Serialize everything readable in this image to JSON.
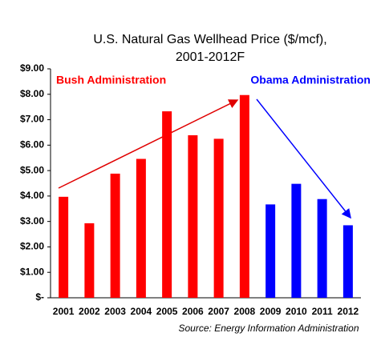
{
  "chart_data": {
    "type": "bar",
    "title": [
      "U.S. Natural Gas Wellhead Price ($/mcf),",
      "2001-2012F"
    ],
    "categories": [
      "2001",
      "2002",
      "2003",
      "2004",
      "2005",
      "2006",
      "2007",
      "2008",
      "2009",
      "2010",
      "2011",
      "2012"
    ],
    "values": [
      3.97,
      2.93,
      4.88,
      5.46,
      7.33,
      6.39,
      6.25,
      7.97,
      3.67,
      4.48,
      3.88,
      2.85
    ],
    "colors": [
      "#ff0000",
      "#ff0000",
      "#ff0000",
      "#ff0000",
      "#ff0000",
      "#ff0000",
      "#ff0000",
      "#ff0000",
      "#0000ff",
      "#0000ff",
      "#0000ff",
      "#0000ff"
    ],
    "ylim": [
      0,
      9
    ],
    "yticks": [
      {
        "value": 0,
        "label": "$-"
      },
      {
        "value": 1,
        "label": "$1.00"
      },
      {
        "value": 2,
        "label": "$2.00"
      },
      {
        "value": 3,
        "label": "$3.00"
      },
      {
        "value": 4,
        "label": "$4.00"
      },
      {
        "value": 5,
        "label": "$5.00"
      },
      {
        "value": 6,
        "label": "$6.00"
      },
      {
        "value": 7,
        "label": "$7.00"
      },
      {
        "value": 8,
        "label": "$8.00"
      },
      {
        "value": 9,
        "label": "$9.00"
      }
    ],
    "annotations": [
      {
        "text": "Bush Administration",
        "color": "#ff0000"
      },
      {
        "text": "Obama Administration",
        "color": "#0000ff"
      }
    ],
    "source": "Source: Energy Information Administration"
  }
}
